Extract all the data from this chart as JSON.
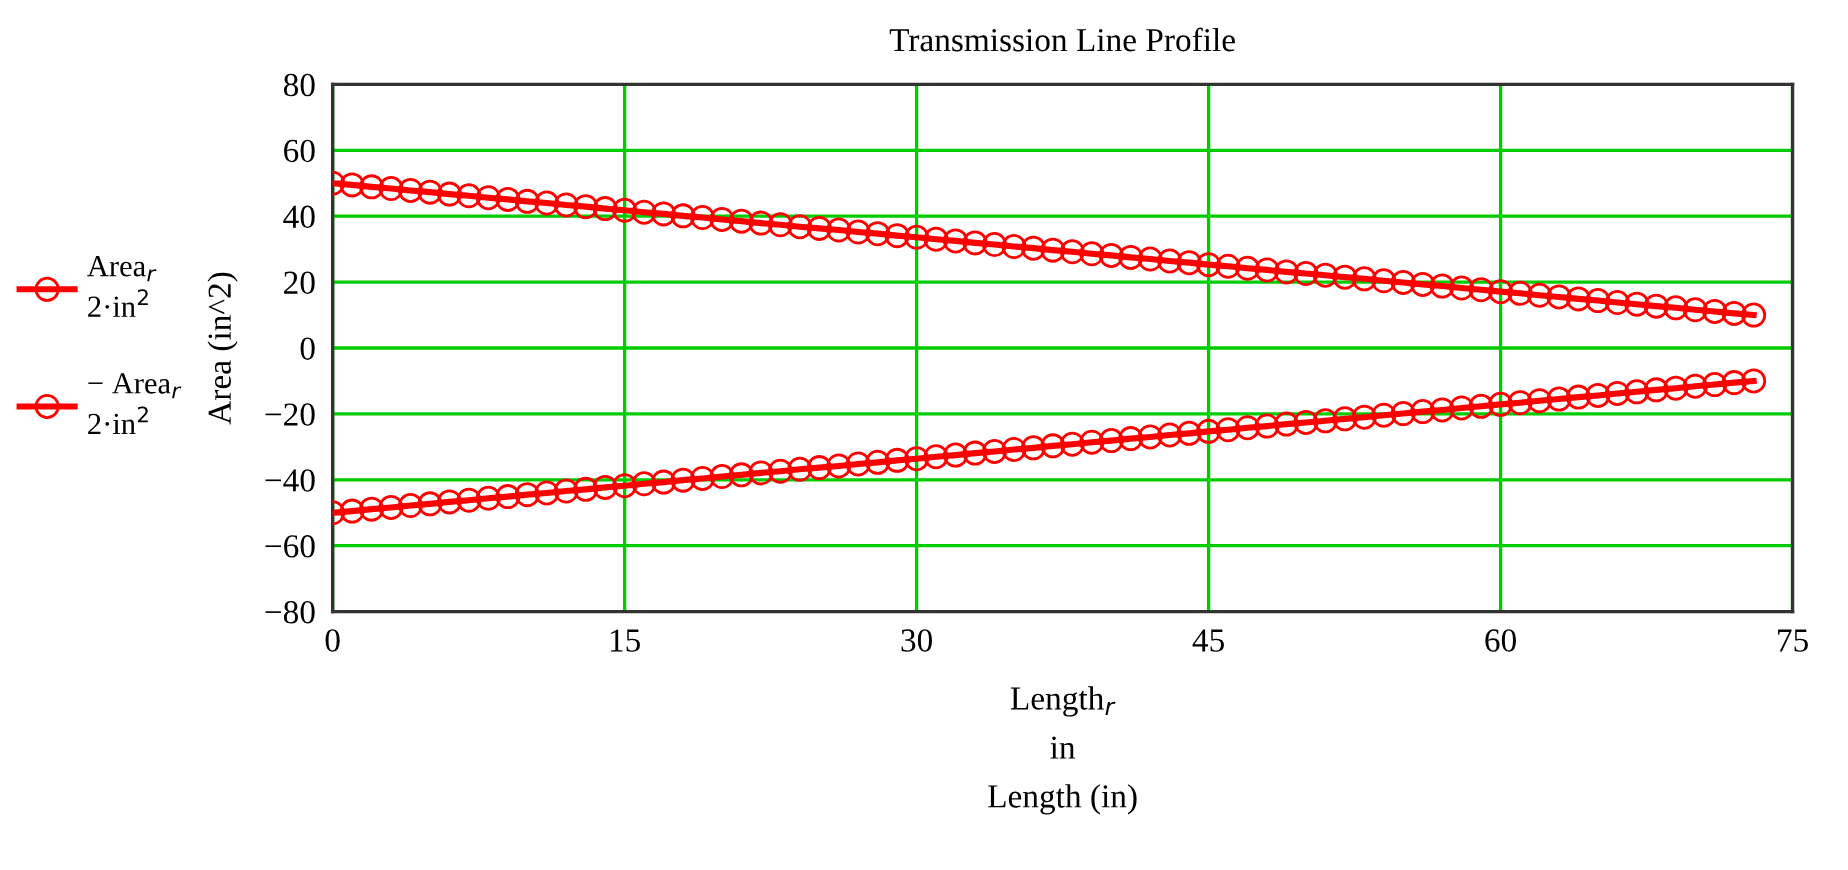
{
  "chart_data": {
    "type": "line",
    "title": "Transmission Line Profile",
    "xlabel": "Length$_{r}$\nin\nLength (in)",
    "ylabel": "Area (in^2)",
    "x": [
      0,
      1,
      2,
      3,
      4,
      5,
      6,
      7,
      8,
      9,
      10,
      11,
      12,
      13,
      14,
      15,
      16,
      17,
      18,
      19,
      20,
      21,
      22,
      23,
      24,
      25,
      26,
      27,
      28,
      29,
      30,
      31,
      32,
      33,
      34,
      35,
      36,
      37,
      38,
      39,
      40,
      41,
      42,
      43,
      44,
      45,
      46,
      47,
      48,
      49,
      50,
      51,
      52,
      53,
      54,
      55,
      56,
      57,
      58,
      59,
      60,
      61,
      62,
      63,
      64,
      65,
      66,
      67,
      68,
      69,
      70,
      71,
      72,
      73
    ],
    "series": [
      {
        "name": "Area$_{r}$\n2·in$^{2}$",
        "color": "#ff0000",
        "values": [
          50.0,
          49.5,
          48.9,
          48.4,
          47.8,
          47.3,
          46.7,
          46.2,
          45.6,
          45.1,
          44.5,
          44.0,
          43.4,
          42.9,
          42.3,
          41.8,
          41.2,
          40.7,
          40.1,
          39.6,
          39.0,
          38.5,
          37.9,
          37.4,
          36.8,
          36.3,
          35.8,
          35.2,
          34.7,
          34.1,
          33.6,
          33.0,
          32.5,
          31.9,
          31.4,
          30.8,
          30.3,
          29.7,
          29.2,
          28.6,
          28.1,
          27.5,
          27.0,
          26.4,
          25.9,
          25.3,
          24.8,
          24.2,
          23.7,
          23.1,
          22.6,
          22.1,
          21.5,
          21.0,
          20.4,
          19.9,
          19.3,
          18.8,
          18.2,
          17.7,
          17.1,
          16.6,
          16.0,
          15.5,
          14.9,
          14.4,
          13.8,
          13.3,
          12.7,
          12.2,
          11.6,
          11.1,
          10.5,
          10.0
        ]
      },
      {
        "name": "− Area$_{r}$\n2·in$^{2}$",
        "color": "#ff0000",
        "values": [
          -50.0,
          -49.5,
          -48.9,
          -48.4,
          -47.8,
          -47.3,
          -46.7,
          -46.2,
          -45.6,
          -45.1,
          -44.5,
          -44.0,
          -43.4,
          -42.9,
          -42.3,
          -41.8,
          -41.2,
          -40.7,
          -40.1,
          -39.6,
          -39.0,
          -38.5,
          -37.9,
          -37.4,
          -36.8,
          -36.3,
          -35.8,
          -35.2,
          -34.7,
          -34.1,
          -33.6,
          -33.0,
          -32.5,
          -31.9,
          -31.4,
          -30.8,
          -30.3,
          -29.7,
          -29.2,
          -28.6,
          -28.1,
          -27.5,
          -27.0,
          -26.4,
          -25.9,
          -25.3,
          -24.8,
          -24.2,
          -23.7,
          -23.1,
          -22.6,
          -22.1,
          -21.5,
          -21.0,
          -20.4,
          -19.9,
          -19.3,
          -18.8,
          -18.2,
          -17.7,
          -17.1,
          -16.6,
          -16.0,
          -15.5,
          -14.9,
          -14.4,
          -13.8,
          -13.3,
          -12.7,
          -12.2,
          -11.6,
          -11.1,
          -10.5,
          -10.0
        ]
      }
    ],
    "xlim": [
      0,
      75
    ],
    "xticks": [
      0,
      15,
      30,
      45,
      60,
      75
    ],
    "ylim": [
      -80,
      80
    ],
    "yticks": [
      {
        "value": -80,
        "label": "−80"
      },
      {
        "value": -60,
        "label": "−60"
      },
      {
        "value": -40,
        "label": "−40"
      },
      {
        "value": -20,
        "label": "−20"
      },
      0,
      20,
      40,
      60,
      80
    ],
    "grid": true,
    "legend": "left",
    "marker": "circle",
    "line_style": "solid"
  }
}
